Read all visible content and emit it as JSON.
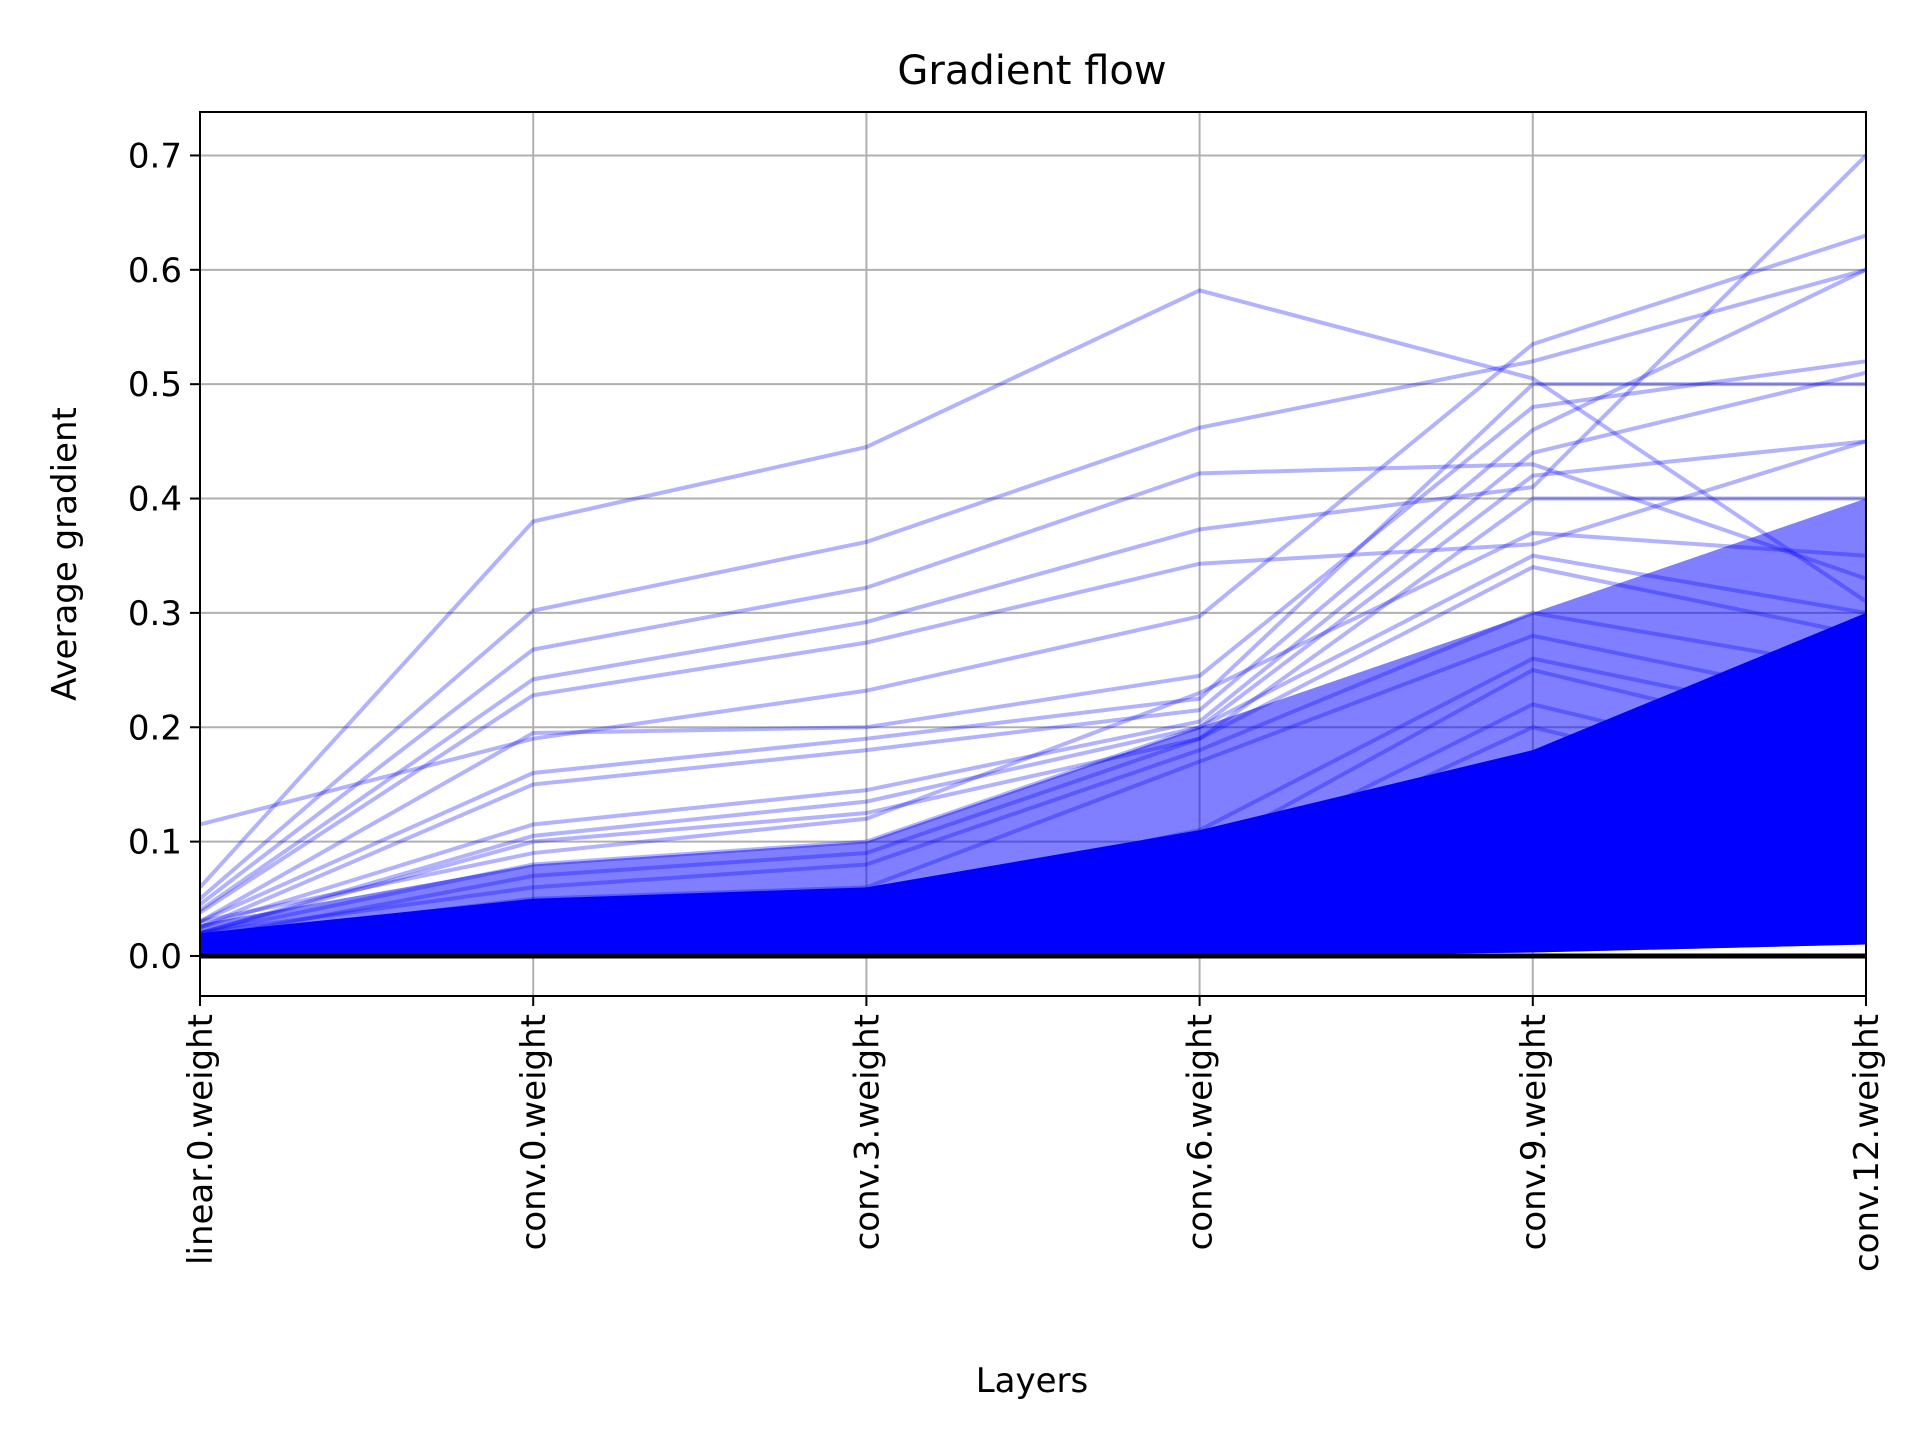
{
  "chart_data": {
    "type": "line",
    "title": "Gradient flow",
    "xlabel": "Layers",
    "ylabel": "Average gradient",
    "categories": [
      "linear.0.weight",
      "conv.0.weight",
      "conv.3.weight",
      "conv.6.weight",
      "conv.9.weight",
      "conv.12.weight"
    ],
    "ylim": [
      -0.035,
      0.738
    ],
    "yticks": [
      0.0,
      0.1,
      0.2,
      0.3,
      0.4,
      0.5,
      0.6,
      0.7
    ],
    "ytick_labels": [
      "0.0",
      "0.1",
      "0.2",
      "0.3",
      "0.4",
      "0.5",
      "0.6",
      "0.7"
    ],
    "grid": true,
    "legend": "none",
    "colors": {
      "lines": "#0000ff",
      "baseline": "#000000",
      "grid": "#b0b0b0"
    },
    "baseline_values": [
      0.0,
      0.0,
      0.0,
      0.0,
      0.0,
      0.0
    ],
    "series": [
      {
        "values": [
          0.06,
          0.38,
          0.445,
          0.582,
          0.505,
          0.31
        ]
      },
      {
        "values": [
          0.05,
          0.302,
          0.362,
          0.462,
          0.52,
          0.6
        ]
      },
      {
        "values": [
          0.045,
          0.268,
          0.322,
          0.422,
          0.43,
          0.33
        ]
      },
      {
        "values": [
          0.04,
          0.242,
          0.292,
          0.373,
          0.41,
          0.7
        ]
      },
      {
        "values": [
          0.038,
          0.228,
          0.274,
          0.343,
          0.36,
          0.45
        ]
      },
      {
        "values": [
          0.115,
          0.19,
          0.232,
          0.297,
          0.535,
          0.63
        ]
      },
      {
        "values": [
          0.03,
          0.195,
          0.2,
          0.245,
          0.48,
          0.52
        ]
      },
      {
        "values": [
          0.03,
          0.16,
          0.19,
          0.225,
          0.5,
          0.5
        ]
      },
      {
        "values": [
          0.025,
          0.15,
          0.18,
          0.215,
          0.46,
          0.6
        ]
      },
      {
        "values": [
          0.025,
          0.115,
          0.145,
          0.205,
          0.44,
          0.51
        ]
      },
      {
        "values": [
          0.02,
          0.105,
          0.135,
          0.2,
          0.42,
          0.45
        ]
      },
      {
        "values": [
          0.02,
          0.1,
          0.125,
          0.19,
          0.4,
          0.4
        ]
      },
      {
        "values": [
          0.03,
          0.09,
          0.12,
          0.23,
          0.37,
          0.35
        ]
      },
      {
        "values": [
          0.02,
          0.08,
          0.1,
          0.2,
          0.35,
          0.3
        ]
      },
      {
        "values": [
          0.015,
          0.07,
          0.09,
          0.19,
          0.34,
          0.28
        ]
      },
      {
        "values": [
          0.02,
          0.06,
          0.08,
          0.18,
          0.3,
          0.25
        ]
      },
      {
        "values": [
          0.015,
          0.05,
          0.06,
          0.17,
          0.28,
          0.22
        ]
      },
      {
        "values": [
          0.01,
          0.04,
          0.05,
          0.11,
          0.26,
          0.2
        ]
      },
      {
        "values": [
          0.01,
          0.035,
          0.04,
          0.09,
          0.25,
          0.18
        ]
      },
      {
        "values": [
          0.01,
          0.03,
          0.035,
          0.075,
          0.22,
          0.15
        ]
      },
      {
        "values": [
          0.01,
          0.03,
          0.035,
          0.065,
          0.2,
          0.13
        ]
      },
      {
        "values": [
          0.005,
          0.02,
          0.025,
          0.05,
          0.16,
          0.1
        ]
      },
      {
        "values": [
          0.005,
          0.015,
          0.02,
          0.04,
          0.14,
          0.08
        ]
      },
      {
        "values": [
          0.005,
          0.01,
          0.015,
          0.03,
          0.1,
          0.06
        ]
      },
      {
        "values": [
          0.003,
          0.008,
          0.01,
          0.02,
          0.07,
          0.04
        ]
      },
      {
        "values": [
          0.002,
          0.005,
          0.006,
          0.01,
          0.03,
          0.02
        ]
      }
    ]
  }
}
